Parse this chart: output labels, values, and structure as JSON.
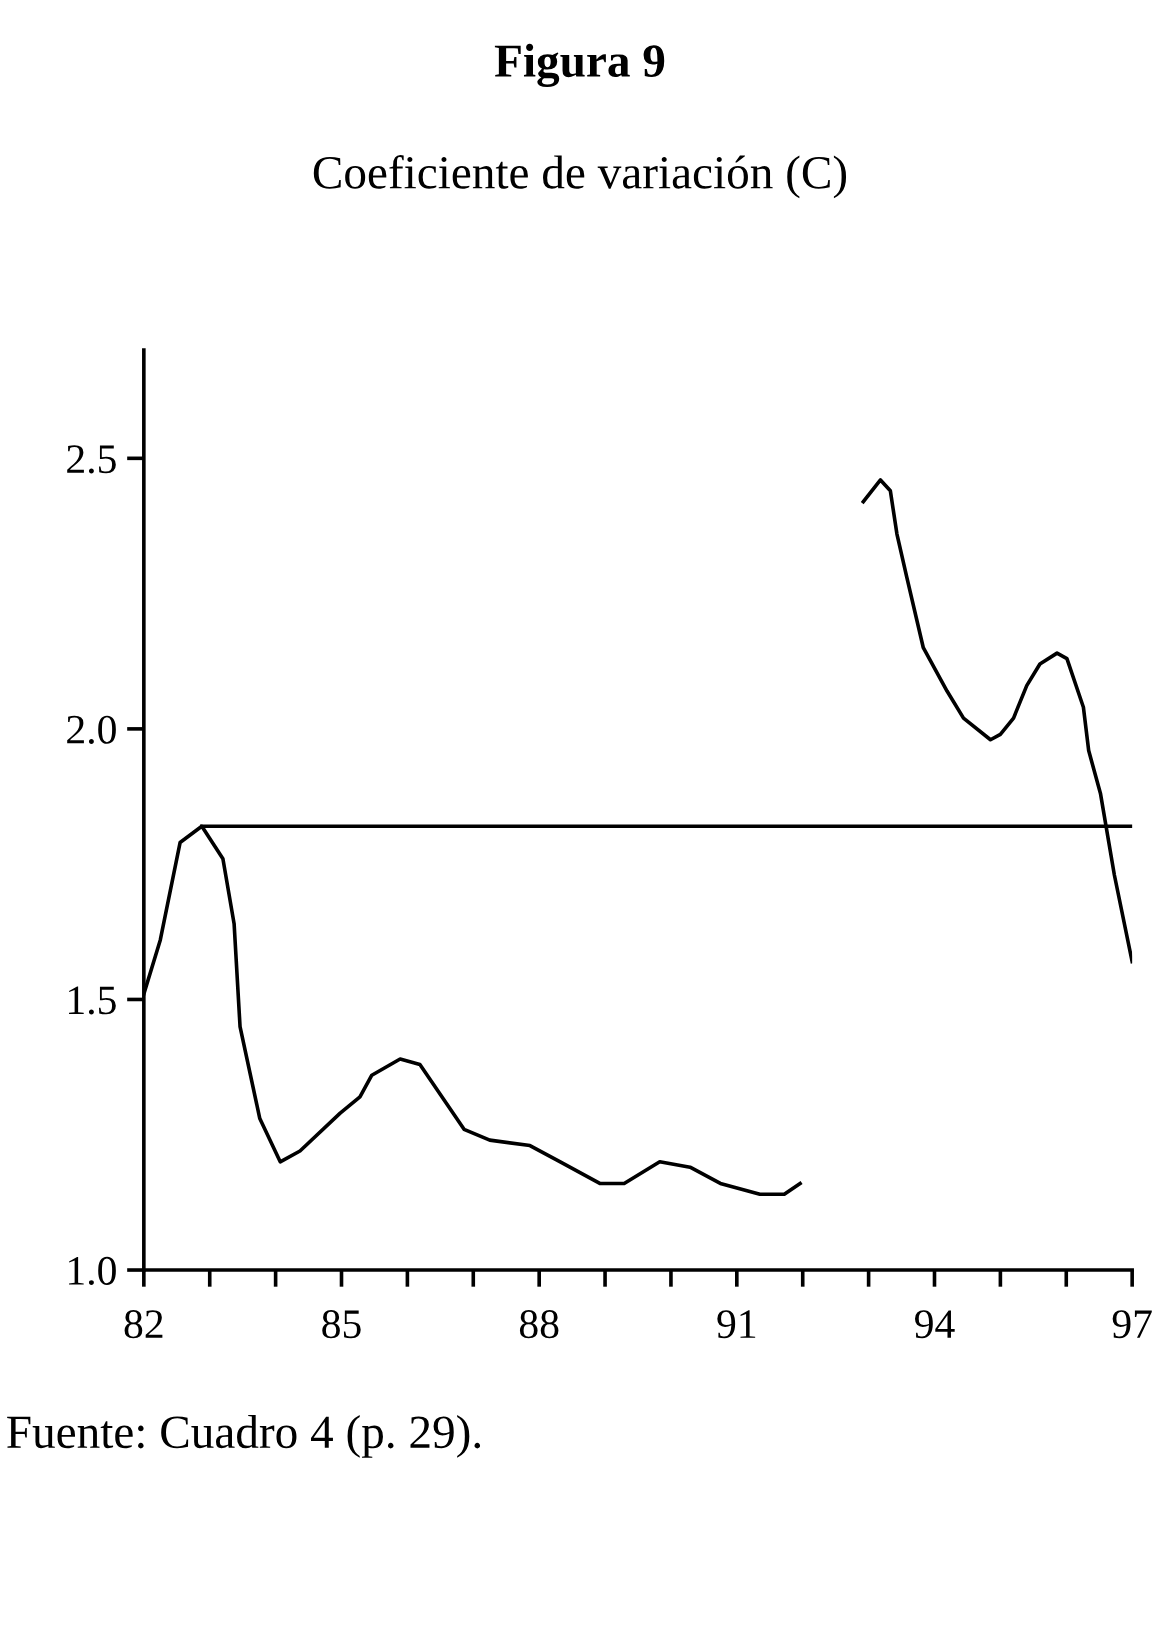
{
  "chart_data": {
    "type": "line",
    "title": "Figura 9",
    "subtitle": "Coeficiente de variación (C)",
    "annotations": [
      "Fuente: Cuadro 4 (p. 29)."
    ],
    "series": [
      {
        "color": "#000000",
        "x": [
          82.0,
          82.25,
          82.55,
          82.88,
          83.2,
          83.37,
          83.46,
          83.76,
          84.07,
          84.37,
          84.98,
          85.28,
          85.46,
          85.89,
          86.19,
          86.86,
          87.25,
          87.86,
          88.32,
          88.92,
          89.29,
          89.83,
          90.29,
          90.75,
          91.35,
          91.72,
          91.96
        ],
        "values": [
          1.51,
          1.61,
          1.79,
          1.82,
          1.76,
          1.64,
          1.45,
          1.28,
          1.2,
          1.22,
          1.29,
          1.32,
          1.36,
          1.39,
          1.38,
          1.26,
          1.24,
          1.23,
          1.2,
          1.16,
          1.16,
          1.2,
          1.19,
          1.16,
          1.14,
          1.14,
          1.16
        ]
      },
      {
        "color": "#000000",
        "x": [
          92.92,
          93.18,
          93.33,
          93.43,
          93.58,
          93.83,
          94.19,
          94.44,
          94.85,
          95.0,
          95.2,
          95.4,
          95.6,
          95.86,
          96.01,
          96.26,
          96.34,
          96.52,
          96.73,
          97.0
        ],
        "values": [
          2.42,
          2.46,
          2.44,
          2.36,
          2.28,
          2.15,
          2.07,
          2.02,
          1.98,
          1.99,
          2.02,
          2.08,
          2.12,
          2.14,
          2.13,
          2.04,
          1.96,
          1.88,
          1.73,
          1.57
        ]
      },
      {
        "color": "#000000",
        "x": [
          82.88,
          97.0
        ],
        "values": [
          1.82,
          1.82
        ]
      }
    ],
    "xlim": [
      82,
      97
    ],
    "ylim": [
      1.0,
      2.7
    ],
    "xticks": [
      82,
      {
        "value": 83,
        "label": null
      },
      {
        "value": 84,
        "label": null
      },
      85,
      {
        "value": 86,
        "label": null
      },
      {
        "value": 87,
        "label": null
      },
      88,
      {
        "value": 89,
        "label": null
      },
      {
        "value": 90,
        "label": null
      },
      91,
      {
        "value": 92,
        "label": null
      },
      {
        "value": 93,
        "label": null
      },
      94,
      {
        "value": 95,
        "label": null
      },
      {
        "value": 96,
        "label": null
      },
      97
    ],
    "yticks": [
      {
        "value": 1,
        "label": "1.0"
      },
      1.5,
      {
        "value": 2,
        "label": "2.0"
      },
      2.5
    ],
    "grid": false,
    "legend": false,
    "marker": "none",
    "line_style": "solid"
  }
}
